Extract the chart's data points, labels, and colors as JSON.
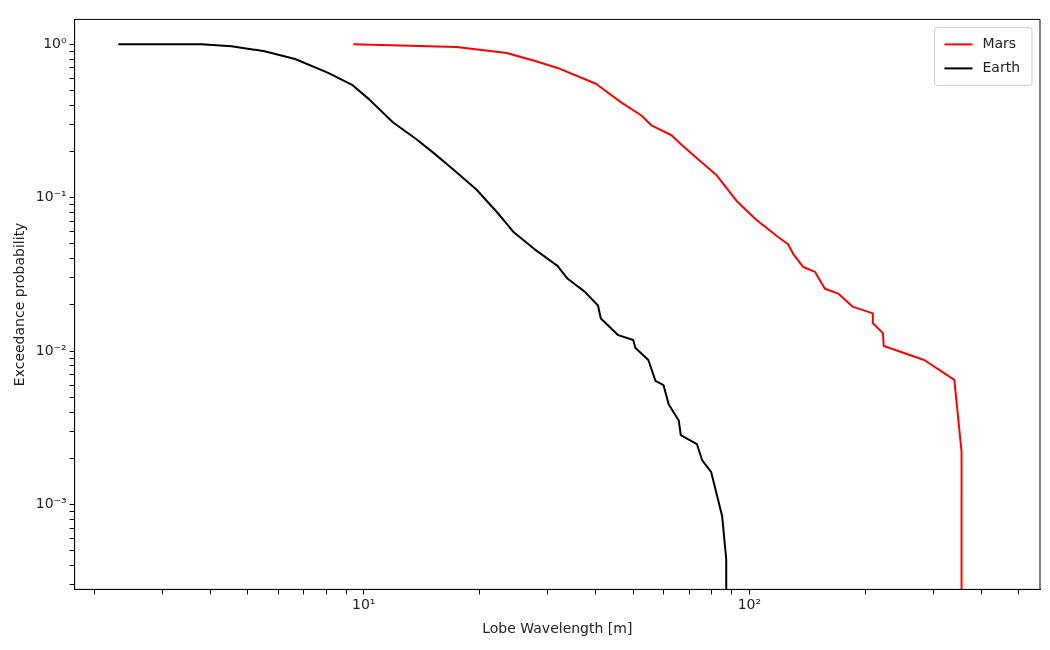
{
  "chart_data": {
    "type": "line",
    "xlabel": "Lobe Wavelength [m]",
    "ylabel": "Exceedance probability",
    "log": "xy",
    "grid": false,
    "legend": "top right",
    "marker": "none",
    "line_style": "solid",
    "xlim": [
      1.78,
      567
    ],
    "ylim": [
      0.00028,
      1.45
    ],
    "xticks": [
      {
        "value": 2,
        "label": null
      },
      {
        "value": 3,
        "label": null
      },
      {
        "value": 4,
        "label": null
      },
      {
        "value": 5,
        "label": null
      },
      {
        "value": 6,
        "label": null
      },
      {
        "value": 7,
        "label": null
      },
      {
        "value": 8,
        "label": null
      },
      {
        "value": 9,
        "label": null
      },
      {
        "value": 10,
        "label": "10¹"
      },
      {
        "value": 20,
        "label": null
      },
      {
        "value": 30,
        "label": null
      },
      {
        "value": 40,
        "label": null
      },
      {
        "value": 50,
        "label": null
      },
      {
        "value": 60,
        "label": null
      },
      {
        "value": 70,
        "label": null
      },
      {
        "value": 80,
        "label": null
      },
      {
        "value": 90,
        "label": null
      },
      {
        "value": 100,
        "label": "10²"
      },
      {
        "value": 200,
        "label": null
      },
      {
        "value": 300,
        "label": null
      },
      {
        "value": 400,
        "label": null
      },
      {
        "value": 500,
        "label": null
      }
    ],
    "yticks": [
      {
        "value": 0.0003,
        "label": null
      },
      {
        "value": 0.0004,
        "label": null
      },
      {
        "value": 0.0005,
        "label": null
      },
      {
        "value": 0.0006,
        "label": null
      },
      {
        "value": 0.0007,
        "label": null
      },
      {
        "value": 0.0008,
        "label": null
      },
      {
        "value": 0.0009,
        "label": null
      },
      {
        "value": 0.001,
        "label": "10⁻³"
      },
      {
        "value": 0.002,
        "label": null
      },
      {
        "value": 0.003,
        "label": null
      },
      {
        "value": 0.004,
        "label": null
      },
      {
        "value": 0.005,
        "label": null
      },
      {
        "value": 0.006,
        "label": null
      },
      {
        "value": 0.007,
        "label": null
      },
      {
        "value": 0.008,
        "label": null
      },
      {
        "value": 0.009,
        "label": null
      },
      {
        "value": 0.01,
        "label": "10⁻²"
      },
      {
        "value": 0.02,
        "label": null
      },
      {
        "value": 0.03,
        "label": null
      },
      {
        "value": 0.04,
        "label": null
      },
      {
        "value": 0.05,
        "label": null
      },
      {
        "value": 0.06,
        "label": null
      },
      {
        "value": 0.07,
        "label": null
      },
      {
        "value": 0.08,
        "label": null
      },
      {
        "value": 0.09,
        "label": null
      },
      {
        "value": 0.1,
        "label": "10⁻¹"
      },
      {
        "value": 0.2,
        "label": null
      },
      {
        "value": 0.3,
        "label": null
      },
      {
        "value": 0.4,
        "label": null
      },
      {
        "value": 0.5,
        "label": null
      },
      {
        "value": 0.6,
        "label": null
      },
      {
        "value": 0.7,
        "label": null
      },
      {
        "value": 0.8,
        "label": null
      },
      {
        "value": 0.9,
        "label": null
      },
      {
        "value": 1,
        "label": "10⁰"
      }
    ],
    "series": [
      {
        "name": "Mars",
        "color": "#ff0000",
        "x": [
          9.4,
          17.4,
          23.5,
          27.7,
          31.8,
          40.0,
          46.6,
          52.5,
          55.7,
          62.8,
          66.8,
          74.0,
          82,
          87.1,
          93.1,
          104,
          118,
          126,
          130,
          138,
          148,
          157,
          170,
          185,
          209,
          209,
          222,
          223,
          284,
          340,
          355,
          355
        ],
        "values": [
          1.0,
          0.96,
          0.875,
          0.78,
          0.7,
          0.552,
          0.416,
          0.343,
          0.296,
          0.255,
          0.22,
          0.176,
          0.141,
          0.116,
          0.094,
          0.072,
          0.056,
          0.0497,
          0.0429,
          0.0353,
          0.0328,
          0.0255,
          0.0237,
          0.0195,
          0.0176,
          0.0152,
          0.0131,
          0.0108,
          0.00875,
          0.0065,
          0.0022,
          0.00028
        ]
      },
      {
        "name": "Earth",
        "color": "#000000",
        "x": [
          2.31,
          3.79,
          4.54,
          5.53,
          6.64,
          8.09,
          9.36,
          10.3,
          11.9,
          13.7,
          15.2,
          17.1,
          19.6,
          22.2,
          24.5,
          27.7,
          31.8,
          33.8,
          37.4,
          40.5,
          41.2,
          45.7,
          50.0,
          50.6,
          54.7,
          57.1,
          59.9,
          61.8,
          65.6,
          66.4,
          73.1,
          75.4,
          79.6,
          85,
          87.1,
          87.1
        ],
        "values": [
          1.0,
          1.0,
          0.97,
          0.9,
          0.8,
          0.65,
          0.54,
          0.44,
          0.31,
          0.24,
          0.195,
          0.152,
          0.113,
          0.08,
          0.0594,
          0.0462,
          0.0359,
          0.0296,
          0.0244,
          0.0198,
          0.0163,
          0.0127,
          0.0118,
          0.0105,
          0.00875,
          0.0064,
          0.006,
          0.00449,
          0.00353,
          0.00283,
          0.00248,
          0.00195,
          0.00163,
          0.00084,
          0.00044,
          0.00028
        ]
      }
    ]
  }
}
